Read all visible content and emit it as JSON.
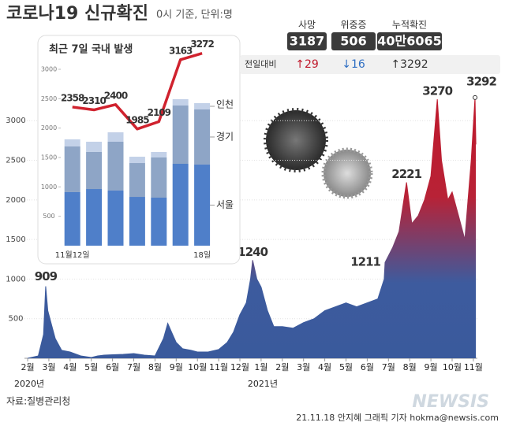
{
  "header": {
    "title": "코로나19 신규확진",
    "subtitle": "0시 기준, 단위:명"
  },
  "stats": {
    "change_label": "전일대비",
    "items": [
      {
        "label": "사망",
        "value": "3187",
        "change": "↑29"
      },
      {
        "label": "위중증",
        "value": "506",
        "change": "↓16"
      },
      {
        "label": "누적확진",
        "value": "40만6065",
        "change": "↑3292"
      }
    ]
  },
  "chart_data": [
    {
      "type": "area",
      "x": [
        2.0,
        2.5,
        2.75,
        2.85,
        2.95,
        3.1,
        3.3,
        3.6,
        4.0,
        4.5,
        5.0,
        5.3,
        5.6,
        6.0,
        6.5,
        7.0,
        7.5,
        8.0,
        8.4,
        8.6,
        8.8,
        9.0,
        9.3,
        9.7,
        10.0,
        10.5,
        11.0,
        11.4,
        11.7,
        12.0,
        12.3,
        12.5,
        12.6,
        12.8,
        13.0,
        13.3,
        13.6,
        14.0,
        14.5,
        15.0,
        15.5,
        16.0,
        16.5,
        17.0,
        17.5,
        18.0,
        18.5,
        18.8,
        18.84,
        19.2,
        19.5,
        19.85,
        20.1,
        20.4,
        20.7,
        21.0,
        21.3,
        21.5,
        21.8,
        22.0,
        22.3,
        22.6,
        22.9,
        23.08,
        23.12
      ],
      "series": [
        {
          "color": "#c0182b",
          "values": [
            0,
            30,
            300,
            909,
            600,
            450,
            250,
            100,
            80,
            30,
            10,
            30,
            40,
            45,
            50,
            60,
            40,
            30,
            250,
            441,
            320,
            200,
            120,
            100,
            80,
            80,
            110,
            200,
            330,
            550,
            700,
            1000,
            1240,
            1000,
            900,
            600,
            400,
            400,
            380,
            450,
            500,
            600,
            650,
            700,
            650,
            700,
            750,
            1000,
            1211,
            1400,
            1600,
            2221,
            1700,
            1800,
            2000,
            2300,
            3270,
            2500,
            2000,
            2100,
            1800,
            1500,
            2500,
            3292,
            2700
          ]
        }
      ],
      "xlim": [
        1.85,
        23.19
      ],
      "xticks": [
        {
          "value": 2,
          "label": "2월"
        },
        {
          "value": 3,
          "label": "3월"
        },
        {
          "value": 4,
          "label": "4월"
        },
        {
          "value": 5,
          "label": "5월"
        },
        {
          "value": 6,
          "label": "6월"
        },
        {
          "value": 7,
          "label": "7월"
        },
        {
          "value": 8,
          "label": "8월"
        },
        {
          "value": 9,
          "label": "9월"
        },
        {
          "value": 10,
          "label": "10월"
        },
        {
          "value": 11,
          "label": "11월"
        },
        {
          "value": 12,
          "label": "12월"
        },
        {
          "value": 13,
          "label": "1월"
        },
        {
          "value": 14,
          "label": "2월"
        },
        {
          "value": 15,
          "label": "3월"
        },
        {
          "value": 16,
          "label": "4월"
        },
        {
          "value": 17,
          "label": "5월"
        },
        {
          "value": 18,
          "label": "6월"
        },
        {
          "value": 19,
          "label": "7월"
        },
        {
          "value": 20,
          "label": "8월"
        },
        {
          "value": 21,
          "label": "9월"
        },
        {
          "value": 22,
          "label": "10월"
        },
        {
          "value": 23,
          "label": "11월"
        }
      ],
      "year_labels": [
        {
          "value": 2,
          "label": "2020년"
        },
        {
          "value": 13,
          "label": "2021년"
        }
      ],
      "ylim": [
        0,
        3400
      ],
      "yticks": [
        500,
        1000,
        1500,
        2000,
        2500,
        3000
      ],
      "grid": true,
      "annotations": [
        {
          "x": 2.85,
          "value": 909
        },
        {
          "x": 12.6,
          "value": 1240
        },
        {
          "x": 18.84,
          "value": 1211
        },
        {
          "x": 19.85,
          "value": 2221
        },
        {
          "x": 21.3,
          "value": 3270
        },
        {
          "x": 23.08,
          "value": 3292
        }
      ]
    },
    {
      "type": "bar",
      "stacked": true,
      "title": "최근 7일 국내 발생",
      "categories": [
        "11월12일",
        null,
        null,
        null,
        null,
        null,
        "18일"
      ],
      "series": [
        {
          "name": "서울",
          "color": "#4f7fc9",
          "values": [
            911,
            964,
            938,
            830,
            817,
            1393,
            1380
          ]
        },
        {
          "name": "경기",
          "color": "#8ea5c6",
          "values": [
            777,
            630,
            830,
            576,
            683,
            991,
            937
          ]
        },
        {
          "name": "인천",
          "color": "#c3d1e8",
          "values": [
            120,
            174,
            160,
            107,
            94,
            107,
            107
          ]
        },
        {
          "type": "line",
          "color": "#d0222e",
          "values": [
            2358,
            2310,
            2400,
            1985,
            2109,
            3163,
            3272
          ]
        }
      ],
      "ylim": [
        0,
        3000
      ],
      "yticks": [
        500,
        1000,
        1500,
        2000,
        2500,
        3000
      ]
    }
  ],
  "footer": {
    "source": "자료:질병관리청",
    "credit": "21.11.18 안지혜 그래픽 기자 hokma@newsis.com",
    "logo": "NEWSIS"
  }
}
